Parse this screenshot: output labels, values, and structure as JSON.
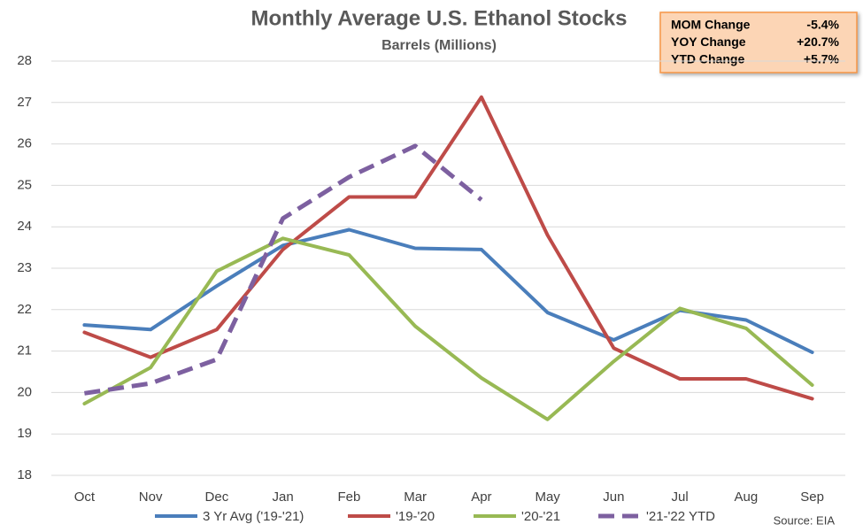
{
  "chart_data": {
    "type": "line",
    "title": "Monthly Average U.S. Ethanol Stocks",
    "subtitle": "Barrels (Millions)",
    "source": "Source: EIA",
    "stats": [
      {
        "label": "MOM Change",
        "value": "-5.4%"
      },
      {
        "label": "YOY Change",
        "value": "+20.7%"
      },
      {
        "label": "YTD Change",
        "value": "+5.7%"
      }
    ],
    "categories": [
      "Oct",
      "Nov",
      "Dec",
      "Jan",
      "Feb",
      "Mar",
      "Apr",
      "May",
      "Jun",
      "Jul",
      "Aug",
      "Sep"
    ],
    "series": [
      {
        "name": "3 Yr Avg ('19-'21)",
        "color": "#4a7ebb",
        "dashed": false,
        "values": [
          21.63,
          21.52,
          22.57,
          23.55,
          23.93,
          23.48,
          23.45,
          21.93,
          21.27,
          21.98,
          21.75,
          20.97
        ]
      },
      {
        "name": "'19-'20",
        "color": "#be4b48",
        "dashed": false,
        "values": [
          21.45,
          20.85,
          21.52,
          23.45,
          24.72,
          24.72,
          27.13,
          23.8,
          21.07,
          20.33,
          20.33,
          19.85
        ]
      },
      {
        "name": "'20-'21",
        "color": "#98b954",
        "dashed": false,
        "values": [
          19.73,
          20.6,
          22.93,
          23.72,
          23.32,
          21.6,
          20.35,
          19.35,
          20.75,
          22.03,
          21.55,
          20.18
        ]
      },
      {
        "name": "'21-'22 YTD",
        "color": "#7d60a0",
        "dashed": true,
        "values": [
          19.98,
          20.22,
          20.8,
          24.2,
          25.2,
          25.95,
          24.65,
          null,
          null,
          null,
          null,
          null
        ]
      }
    ],
    "ylim": [
      18,
      28
    ],
    "yticks": [
      18,
      19,
      20,
      21,
      22,
      23,
      24,
      25,
      26,
      27,
      28
    ],
    "grid": true
  }
}
